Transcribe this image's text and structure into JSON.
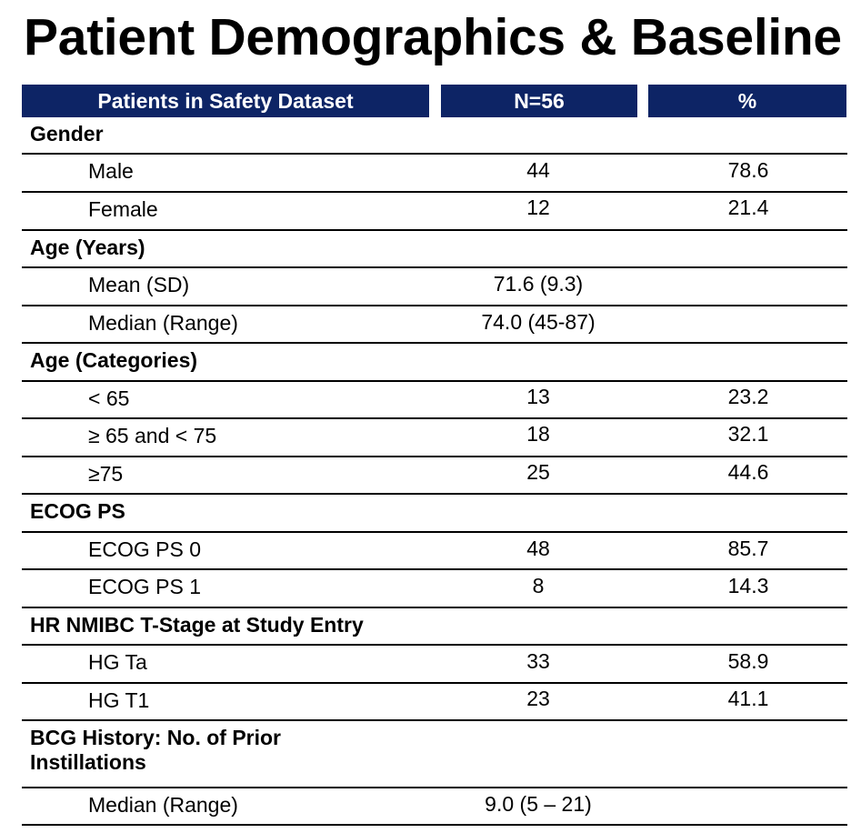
{
  "title": "Patient Demographics & Baseline",
  "header": {
    "col1": "Patients in Safety Dataset",
    "col2": "N=56",
    "col3": "%"
  },
  "rows": [
    {
      "type": "cat",
      "label": "Gender"
    },
    {
      "type": "sub",
      "label": "Male",
      "n": "44",
      "pct": "78.6"
    },
    {
      "type": "sub",
      "label": "Female",
      "n": "12",
      "pct": "21.4"
    },
    {
      "type": "cat",
      "label": "Age (Years)"
    },
    {
      "type": "sub",
      "label": "Mean (SD)",
      "n": "71.6 (9.3)",
      "pct": ""
    },
    {
      "type": "sub",
      "label": "Median (Range)",
      "n": "74.0 (45-87)",
      "pct": ""
    },
    {
      "type": "cat",
      "label": "Age (Categories)"
    },
    {
      "type": "sub",
      "label": "< 65",
      "n": "13",
      "pct": "23.2"
    },
    {
      "type": "sub",
      "label": "≥ 65 and < 75",
      "n": "18",
      "pct": "32.1"
    },
    {
      "type": "sub",
      "label": "≥75",
      "n": "25",
      "pct": "44.6"
    },
    {
      "type": "cat",
      "label": "ECOG PS"
    },
    {
      "type": "sub",
      "label": "ECOG PS 0",
      "n": "48",
      "pct": "85.7"
    },
    {
      "type": "sub",
      "label": "ECOG PS 1",
      "n": "8",
      "pct": "14.3"
    },
    {
      "type": "cat",
      "label": "HR NMIBC T-Stage at Study Entry"
    },
    {
      "type": "sub",
      "label": "HG Ta",
      "n": "33",
      "pct": "58.9"
    },
    {
      "type": "sub",
      "label": "HG T1",
      "n": "23",
      "pct": "41.1"
    },
    {
      "type": "cat",
      "label": "BCG History: No. of Prior Instillations"
    },
    {
      "type": "sub",
      "label": "Median (Range)",
      "n": "9.0 (5 – 21)",
      "pct": ""
    }
  ]
}
